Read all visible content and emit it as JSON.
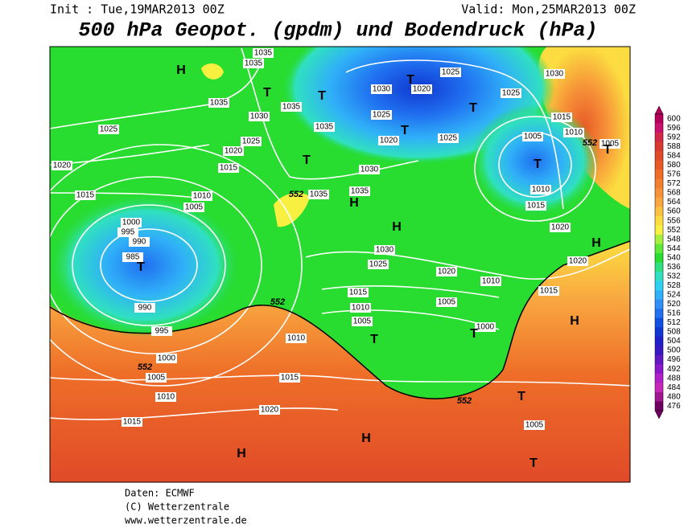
{
  "header": {
    "init": "Init : Tue,19MAR2013 00Z",
    "valid": "Valid: Mon,25MAR2013 00Z",
    "title": "500 hPa Geopot. (gpdm) und Bodendruck (hPa)"
  },
  "map": {
    "isobar_labels": [
      "1035",
      "1035",
      "1035",
      "1035",
      "1035",
      "1030",
      "1025",
      "1020",
      "1015",
      "1025",
      "1020",
      "1015",
      "1010",
      "1005",
      "1000",
      "995",
      "990",
      "985",
      "990",
      "995",
      "1000",
      "1005",
      "1010",
      "1015",
      "1020",
      "1015",
      "1010",
      "1035",
      "1035",
      "1030",
      "1025",
      "1020",
      "1020",
      "1025",
      "1025",
      "1030",
      "1030",
      "1030",
      "1025",
      "1020",
      "1010",
      "1015",
      "1010",
      "1005",
      "1005",
      "1000",
      "1025",
      "1005",
      "1010",
      "1015",
      "1020",
      "1020",
      "1015",
      "1010",
      "1005",
      "1015",
      "1005"
    ],
    "geopotential_labels": [
      "552",
      "552",
      "552",
      "552",
      "552"
    ],
    "high_centers": [
      "H",
      "H",
      "H",
      "H",
      "H",
      "H",
      "H"
    ],
    "low_centers": [
      "T",
      "T",
      "T",
      "T",
      "T",
      "T",
      "T",
      "T",
      "T",
      "T",
      "T",
      "T",
      "T"
    ]
  },
  "legend": {
    "levels": [
      600,
      596,
      592,
      588,
      584,
      580,
      576,
      572,
      568,
      564,
      560,
      556,
      552,
      548,
      544,
      540,
      536,
      532,
      528,
      524,
      520,
      516,
      512,
      508,
      504,
      500,
      496,
      492,
      488,
      484,
      480,
      476
    ],
    "colors": [
      "#b4005a",
      "#c8106e",
      "#d22848",
      "#d83a30",
      "#e04a28",
      "#e85a28",
      "#ee6e28",
      "#f28030",
      "#f69238",
      "#f8a640",
      "#fac040",
      "#fcdc40",
      "#f8f040",
      "#a8f040",
      "#60e838",
      "#28dc30",
      "#30e080",
      "#30e0c0",
      "#30d0f0",
      "#30b0f8",
      "#3090f8",
      "#2070f0",
      "#1050e0",
      "#1038d0",
      "#2020c8",
      "#3818c0",
      "#6018c0",
      "#8818c8",
      "#b020c8",
      "#c828b8",
      "#a01890",
      "#700060"
    ]
  },
  "footer": {
    "source": "Daten: ECMWF",
    "copyright": "(C) Wetterzentrale",
    "url": "www.wetterzentrale.de"
  }
}
